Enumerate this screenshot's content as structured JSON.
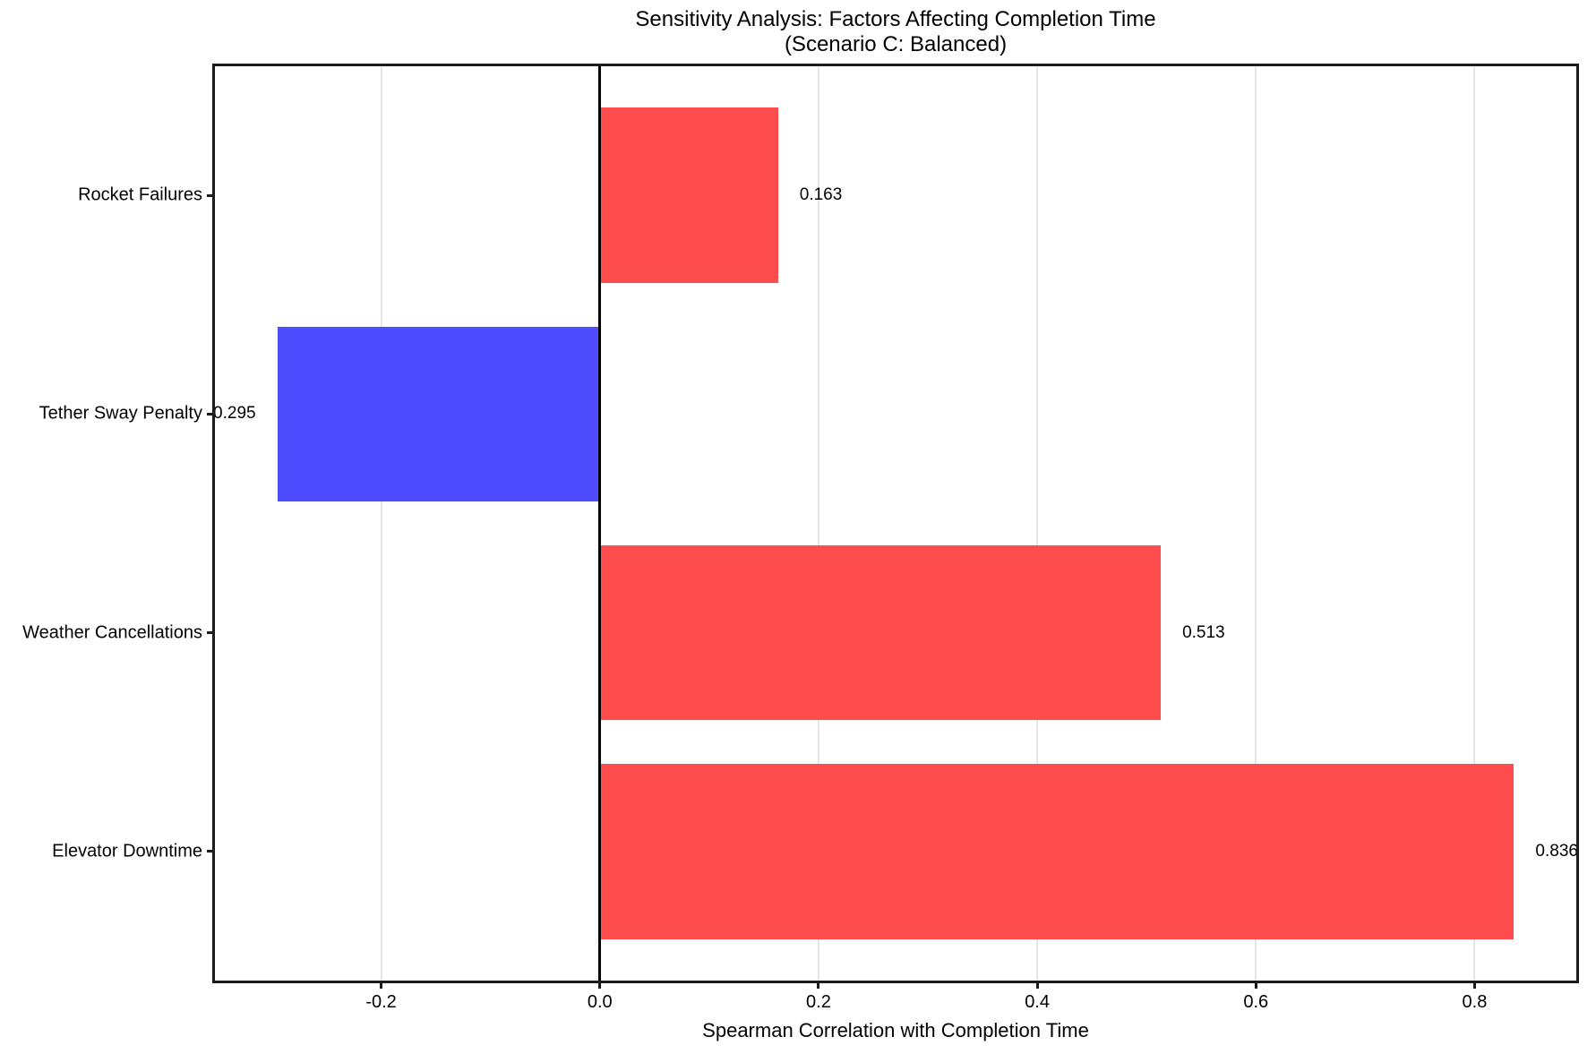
{
  "chart_data": {
    "type": "bar",
    "orientation": "horizontal",
    "title": "Sensitivity Analysis: Factors Affecting Completion Time",
    "subtitle": "(Scenario C: Balanced)",
    "xlabel": "Spearman Correlation with Completion Time",
    "ylabel": "",
    "categories_top_to_bottom": [
      "Rocket Failures",
      "Tether Sway Penalty",
      "Weather Cancellations",
      "Elevator Downtime"
    ],
    "values": [
      0.163,
      -0.295,
      0.513,
      0.836
    ],
    "value_labels": [
      "0.163",
      "-0.295",
      "0.513",
      "0.836"
    ],
    "xticks": [
      -0.2,
      0.0,
      0.2,
      0.4,
      0.6,
      0.8
    ],
    "xtick_labels": [
      "-0.2",
      "0.0",
      "0.2",
      "0.4",
      "0.6",
      "0.8"
    ],
    "xlim": [
      -0.352,
      0.893
    ],
    "ylim": [
      -0.59,
      3.59
    ],
    "bar_thickness": 0.8,
    "grid": true,
    "legend": "none",
    "zero_line": true,
    "colors": {
      "positive_bar": "#ff4d4d",
      "negative_bar": "#4d4dff",
      "gridline": "#e7e7e7",
      "spine": "#1c1c1c",
      "zero_line": "#000000",
      "text": "#000000",
      "background": "#ffffff"
    }
  }
}
